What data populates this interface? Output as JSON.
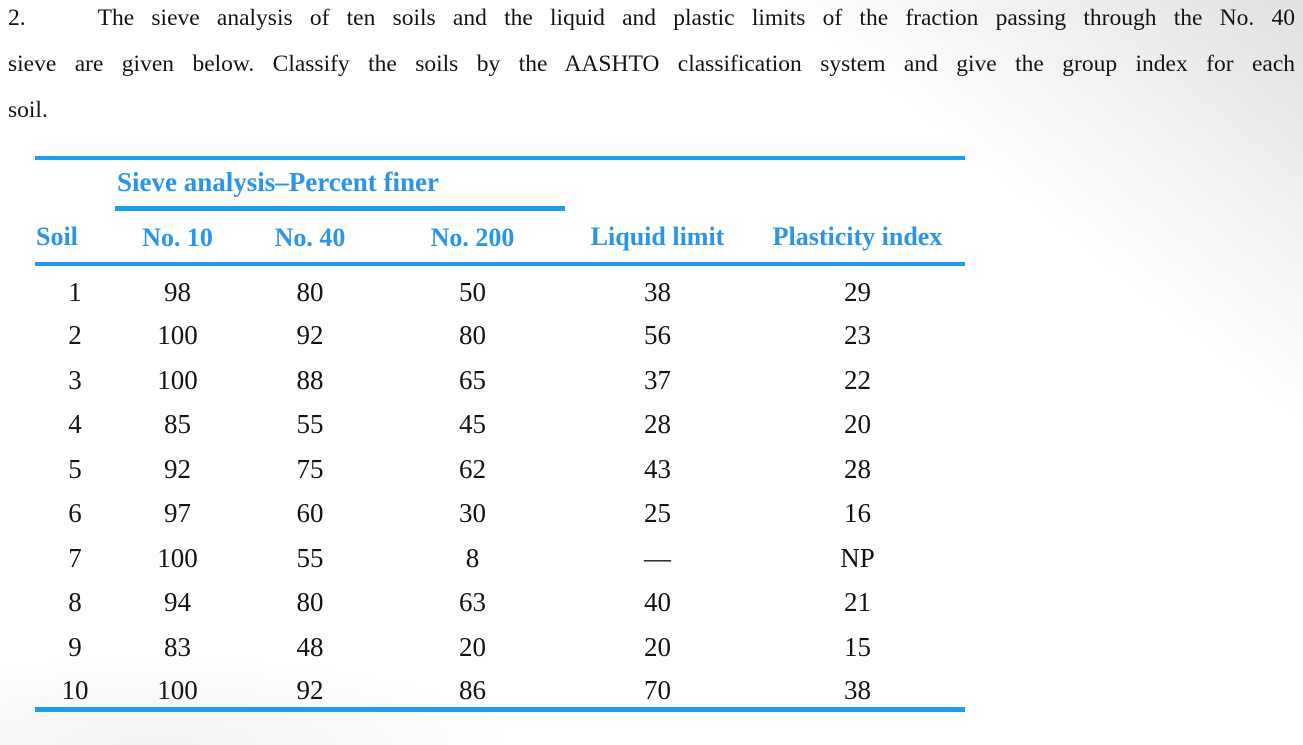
{
  "problem": {
    "number": "2.",
    "lines": [
      "The sieve analysis of ten soils and the liquid and plastic limits of the fraction passing through the No. 40",
      "sieve are given below. Classify the soils by the AASHTO classification system and give the group index for each",
      "soil."
    ]
  },
  "table": {
    "span_header": "Sieve analysis–Percent finer",
    "columns": [
      "Soil",
      "No. 10",
      "No. 40",
      "No. 200",
      "Liquid limit",
      "Plasticity index"
    ],
    "rows": [
      [
        "1",
        "98",
        "80",
        "50",
        "38",
        "29"
      ],
      [
        "2",
        "100",
        "92",
        "80",
        "56",
        "23"
      ],
      [
        "3",
        "100",
        "88",
        "65",
        "37",
        "22"
      ],
      [
        "4",
        "85",
        "55",
        "45",
        "28",
        "20"
      ],
      [
        "5",
        "92",
        "75",
        "62",
        "43",
        "28"
      ],
      [
        "6",
        "97",
        "60",
        "30",
        "25",
        "16"
      ],
      [
        "7",
        "100",
        "55",
        "8",
        "—",
        "NP"
      ],
      [
        "8",
        "94",
        "80",
        "63",
        "40",
        "21"
      ],
      [
        "9",
        "83",
        "48",
        "20",
        "20",
        "15"
      ],
      [
        "10",
        "100",
        "92",
        "86",
        "70",
        "38"
      ]
    ]
  },
  "colors": {
    "accent_blue": "#2a95ea",
    "rule_blue": "#1d9ded"
  }
}
